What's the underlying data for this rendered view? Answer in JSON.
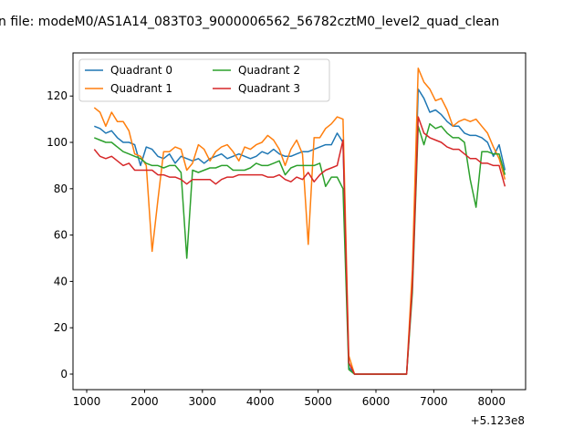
{
  "chart_data": {
    "type": "line",
    "title": "n file: modeM0/AS1A14_083T03_9000006562_56782cztM0_level2_quad_clean",
    "xlabel": "",
    "ylabel": "",
    "x_offset_label": "+5.123e8",
    "xlim": [
      763,
      8587
    ],
    "ylim": [
      -6.7,
      138.6
    ],
    "xticks": [
      1000,
      2000,
      3000,
      4000,
      5000,
      6000,
      7000,
      8000
    ],
    "yticks": [
      0,
      20,
      40,
      60,
      80,
      100,
      120
    ],
    "grid": false,
    "legend_placement": "top-left",
    "legend_columns": 2,
    "x": [
      1130,
      1230,
      1330,
      1430,
      1530,
      1630,
      1730,
      1830,
      1930,
      2030,
      2130,
      2230,
      2330,
      2430,
      2530,
      2630,
      2730,
      2830,
      2930,
      3030,
      3130,
      3230,
      3330,
      3430,
      3530,
      3630,
      3730,
      3830,
      3930,
      4030,
      4130,
      4230,
      4330,
      4430,
      4530,
      4630,
      4730,
      4830,
      4930,
      5030,
      5130,
      5230,
      5330,
      5430,
      5530,
      5630,
      5730,
      5830,
      5930,
      6030,
      6130,
      6230,
      6330,
      6430,
      6530,
      6630,
      6730,
      6830,
      6930,
      7030,
      7130,
      7230,
      7330,
      7430,
      7530,
      7630,
      7730,
      7830,
      7930,
      8030,
      8130,
      8230
    ],
    "series": [
      {
        "name": "Quadrant 0",
        "color": "#1f77b4",
        "values": [
          107,
          106,
          104,
          105,
          102,
          100,
          100,
          99,
          90,
          98,
          97,
          94,
          93,
          95,
          91,
          94,
          93,
          92,
          93,
          91,
          93,
          94,
          95,
          93,
          94,
          95,
          94,
          93,
          94,
          96,
          95,
          97,
          95,
          94,
          94,
          95,
          96,
          96,
          97,
          98,
          99,
          99,
          104,
          100,
          3,
          0,
          0,
          0,
          0,
          0,
          0,
          0,
          0,
          0,
          0,
          40,
          123,
          119,
          113,
          114,
          112,
          109,
          107,
          107,
          104,
          103,
          103,
          102,
          100,
          94,
          99,
          88
        ]
      },
      {
        "name": "Quadrant 1",
        "color": "#ff7f0e",
        "values": [
          115,
          113,
          107,
          113,
          109,
          109,
          105,
          95,
          94,
          90,
          53,
          75,
          96,
          96,
          98,
          97,
          88,
          91,
          99,
          97,
          92,
          96,
          98,
          99,
          96,
          92,
          98,
          97,
          99,
          100,
          103,
          101,
          97,
          90,
          97,
          101,
          95,
          56,
          102,
          102,
          106,
          108,
          111,
          110,
          8,
          0,
          0,
          0,
          0,
          0,
          0,
          0,
          0,
          0,
          0,
          45,
          132,
          126,
          123,
          118,
          119,
          114,
          107,
          109,
          110,
          109,
          110,
          107,
          104,
          98,
          93,
          84
        ]
      },
      {
        "name": "Quadrant 2",
        "color": "#2ca02c",
        "values": [
          102,
          101,
          100,
          100,
          98,
          96,
          95,
          94,
          93,
          91,
          90,
          90,
          89,
          90,
          90,
          87,
          50,
          88,
          87,
          88,
          89,
          89,
          90,
          90,
          88,
          88,
          88,
          89,
          91,
          90,
          90,
          91,
          92,
          86,
          89,
          90,
          90,
          90,
          90,
          91,
          81,
          85,
          85,
          80,
          2,
          0,
          0,
          0,
          0,
          0,
          0,
          0,
          0,
          0,
          0,
          35,
          107,
          99,
          108,
          106,
          107,
          104,
          102,
          102,
          100,
          84,
          72,
          96,
          96,
          95,
          95,
          86
        ]
      },
      {
        "name": "Quadrant 3",
        "color": "#d62728",
        "values": [
          97,
          94,
          93,
          94,
          92,
          90,
          91,
          88,
          88,
          88,
          88,
          86,
          86,
          85,
          85,
          84,
          82,
          84,
          84,
          84,
          84,
          82,
          84,
          85,
          85,
          86,
          86,
          86,
          86,
          86,
          85,
          85,
          86,
          84,
          83,
          85,
          84,
          87,
          83,
          86,
          88,
          89,
          90,
          101,
          5,
          0,
          0,
          0,
          0,
          0,
          0,
          0,
          0,
          0,
          0,
          38,
          111,
          104,
          102,
          101,
          100,
          98,
          97,
          97,
          95,
          93,
          93,
          91,
          91,
          90,
          90,
          81
        ]
      }
    ]
  }
}
